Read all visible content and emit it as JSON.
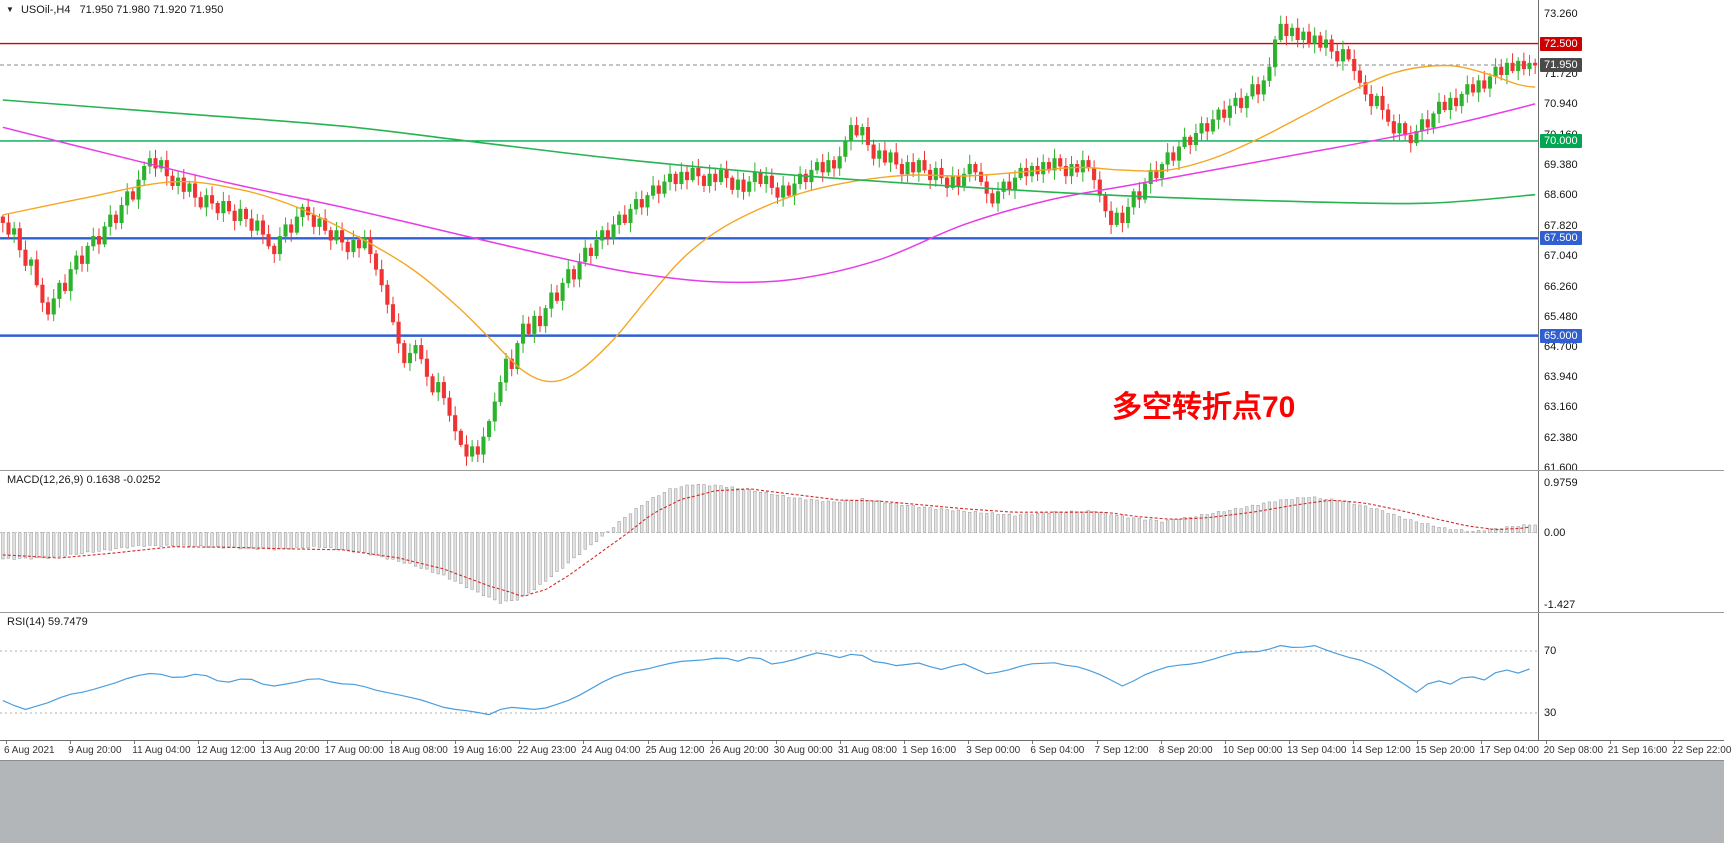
{
  "header": {
    "symbol": "USOil-,H4",
    "ohlc": "71.950 71.980 71.920 71.950"
  },
  "annotation": {
    "text": "多空转折点70",
    "color": "#ff0000"
  },
  "price_axis": {
    "ticks": [
      "73.260",
      "71.720",
      "70.940",
      "70.160",
      "69.380",
      "68.600",
      "67.820",
      "67.040",
      "66.260",
      "65.480",
      "64.700",
      "63.940",
      "63.160",
      "62.380",
      "61.600"
    ],
    "badges": [
      {
        "label": "72.500",
        "value": 72.5,
        "color": "#cc0000"
      },
      {
        "label": "71.950",
        "value": 71.95,
        "color": "#4a4a4a"
      },
      {
        "label": "70.000",
        "value": 70.0,
        "color": "#00a651"
      },
      {
        "label": "67.500",
        "value": 67.5,
        "color": "#2f5fd0"
      },
      {
        "label": "65.000",
        "value": 65.0,
        "color": "#2f5fd0"
      }
    ]
  },
  "indicators": {
    "macd": {
      "label": "MACD(12,26,9) 0.1638 -0.0252",
      "axis_ticks": [
        "0.9759",
        "0.00",
        "-1.427"
      ]
    },
    "rsi": {
      "label": "RSI(14) 59.7479",
      "axis_ticks": [
        "70",
        "30"
      ]
    }
  },
  "time_axis": {
    "labels": [
      "6 Aug 2021",
      "9 Aug 20:00",
      "11 Aug 04:00",
      "12 Aug 12:00",
      "13 Aug 20:00",
      "17 Aug 00:00",
      "18 Aug 08:00",
      "19 Aug 16:00",
      "22 Aug 23:00",
      "24 Aug 04:00",
      "25 Aug 12:00",
      "26 Aug 20:00",
      "30 Aug 00:00",
      "31 Aug 08:00",
      "1 Sep 16:00",
      "3 Sep 00:00",
      "6 Sep 04:00",
      "7 Sep 12:00",
      "8 Sep 20:00",
      "10 Sep 00:00",
      "13 Sep 04:00",
      "14 Sep 12:00",
      "15 Sep 20:00",
      "17 Sep 04:00",
      "20 Sep 08:00",
      "21 Sep 16:00",
      "22 Sep 22:00"
    ]
  },
  "chart_data": [
    {
      "id": "price",
      "type": "candlestick",
      "title": "USOil- H4",
      "ylim": [
        61.6,
        73.26
      ],
      "up_color": "#2db22d",
      "down_color": "#ef3333",
      "current_price": 71.95,
      "first_open": 68.05,
      "closes": [
        67.9,
        67.6,
        67.75,
        67.2,
        66.8,
        66.95,
        66.3,
        65.85,
        65.55,
        65.95,
        66.35,
        66.15,
        66.7,
        67.05,
        66.85,
        67.3,
        67.55,
        67.35,
        67.8,
        68.1,
        67.9,
        68.35,
        68.7,
        68.5,
        69.0,
        69.35,
        69.55,
        69.3,
        69.5,
        69.1,
        68.85,
        69.05,
        68.7,
        68.9,
        68.55,
        68.3,
        68.6,
        68.4,
        68.15,
        68.45,
        68.2,
        67.95,
        68.25,
        68.0,
        67.7,
        67.95,
        67.6,
        67.3,
        67.1,
        67.55,
        67.85,
        67.65,
        68.05,
        68.3,
        68.1,
        67.8,
        68.0,
        67.7,
        67.45,
        67.7,
        67.4,
        67.15,
        67.45,
        67.25,
        67.5,
        67.1,
        66.7,
        66.3,
        65.8,
        65.35,
        64.8,
        64.3,
        64.55,
        64.75,
        64.4,
        63.95,
        63.55,
        63.8,
        63.4,
        62.95,
        62.55,
        62.2,
        61.9,
        62.15,
        61.95,
        62.4,
        62.8,
        63.3,
        63.8,
        64.4,
        64.15,
        64.8,
        65.3,
        65.05,
        65.5,
        65.25,
        65.7,
        66.1,
        65.9,
        66.35,
        66.7,
        66.45,
        66.9,
        67.25,
        67.05,
        67.45,
        67.7,
        67.5,
        67.85,
        68.1,
        67.9,
        68.25,
        68.5,
        68.3,
        68.6,
        68.85,
        68.65,
        68.95,
        69.15,
        68.9,
        69.2,
        69.0,
        69.3,
        69.1,
        68.85,
        69.15,
        68.95,
        69.25,
        69.05,
        68.75,
        69.0,
        68.7,
        68.95,
        69.2,
        68.9,
        69.1,
        68.8,
        68.55,
        68.85,
        68.6,
        68.9,
        69.15,
        68.95,
        69.25,
        69.45,
        69.2,
        69.5,
        69.3,
        69.6,
        70.0,
        70.4,
        70.15,
        70.35,
        69.9,
        69.55,
        69.75,
        69.45,
        69.7,
        69.4,
        69.15,
        69.45,
        69.2,
        69.5,
        69.25,
        69.0,
        69.3,
        69.05,
        68.8,
        69.1,
        68.85,
        69.15,
        69.4,
        69.2,
        68.95,
        68.65,
        68.4,
        68.7,
        68.95,
        68.75,
        69.05,
        69.3,
        69.1,
        69.35,
        69.15,
        69.45,
        69.25,
        69.55,
        69.35,
        69.1,
        69.4,
        69.2,
        69.5,
        69.3,
        69.0,
        68.6,
        68.2,
        67.85,
        68.15,
        67.9,
        68.3,
        68.7,
        68.5,
        68.9,
        69.25,
        69.05,
        69.4,
        69.7,
        69.5,
        69.85,
        70.1,
        69.9,
        70.2,
        70.45,
        70.25,
        70.55,
        70.8,
        70.6,
        70.9,
        71.1,
        70.85,
        71.15,
        71.45,
        71.2,
        71.55,
        71.9,
        72.6,
        73.0,
        72.7,
        72.9,
        72.6,
        72.8,
        72.5,
        72.7,
        72.4,
        72.6,
        72.3,
        72.05,
        72.35,
        72.1,
        71.8,
        71.5,
        71.2,
        70.9,
        71.15,
        70.8,
        70.5,
        70.2,
        70.45,
        70.15,
        69.95,
        70.25,
        70.55,
        70.35,
        70.7,
        71.0,
        70.8,
        71.1,
        70.9,
        71.2,
        71.45,
        71.25,
        71.55,
        71.35,
        71.65,
        71.9,
        71.7,
        72.0,
        71.8,
        72.05,
        71.85,
        72.0,
        71.95
      ],
      "horizontal_lines": [
        {
          "value": 72.5,
          "color": "#d40000",
          "width": 1.4
        },
        {
          "value": 70.0,
          "color": "#00a651",
          "width": 1.4
        },
        {
          "value": 67.5,
          "color": "#2f5fd0",
          "width": 2.4
        },
        {
          "value": 65.0,
          "color": "#2f5fd0",
          "width": 2.4
        }
      ],
      "moving_averages": [
        {
          "name": "ma-orange",
          "color": "#f5a623",
          "width": 1.4,
          "points": [
            [
              0,
              68.1
            ],
            [
              15,
              68.55
            ],
            [
              30,
              68.95
            ],
            [
              42,
              68.75
            ],
            [
              52,
              68.3
            ],
            [
              62,
              67.6
            ],
            [
              72,
              66.75
            ],
            [
              80,
              65.8
            ],
            [
              86,
              64.95
            ],
            [
              92,
              64.1
            ],
            [
              97,
              63.82
            ],
            [
              102,
              64.1
            ],
            [
              108,
              64.9
            ],
            [
              114,
              65.95
            ],
            [
              120,
              66.95
            ],
            [
              126,
              67.65
            ],
            [
              133,
              68.2
            ],
            [
              141,
              68.65
            ],
            [
              150,
              68.95
            ],
            [
              160,
              69.12
            ],
            [
              170,
              69.1
            ],
            [
              180,
              69.2
            ],
            [
              190,
              69.32
            ],
            [
              198,
              69.25
            ],
            [
              206,
              69.25
            ],
            [
              214,
              69.55
            ],
            [
              222,
              70.05
            ],
            [
              230,
              70.65
            ],
            [
              238,
              71.25
            ],
            [
              245,
              71.7
            ],
            [
              251,
              71.9
            ],
            [
              257,
              71.92
            ],
            [
              263,
              71.7
            ],
            [
              268,
              71.45
            ],
            [
              271,
              71.38
            ]
          ]
        },
        {
          "name": "ma-magenta",
          "color": "#e83ce8",
          "width": 1.5,
          "points": [
            [
              0,
              70.35
            ],
            [
              20,
              69.62
            ],
            [
              40,
              68.92
            ],
            [
              60,
              68.3
            ],
            [
              80,
              67.62
            ],
            [
              100,
              66.95
            ],
            [
              112,
              66.6
            ],
            [
              126,
              66.38
            ],
            [
              140,
              66.45
            ],
            [
              155,
              66.95
            ],
            [
              170,
              67.85
            ],
            [
              185,
              68.48
            ],
            [
              200,
              68.88
            ],
            [
              215,
              69.28
            ],
            [
              230,
              69.68
            ],
            [
              245,
              70.08
            ],
            [
              258,
              70.48
            ],
            [
              271,
              70.95
            ]
          ]
        },
        {
          "name": "ma-green",
          "color": "#27b351",
          "width": 1.6,
          "points": [
            [
              0,
              71.05
            ],
            [
              30,
              70.72
            ],
            [
              60,
              70.38
            ],
            [
              82,
              70.0
            ],
            [
              110,
              69.52
            ],
            [
              140,
              69.12
            ],
            [
              170,
              68.82
            ],
            [
              200,
              68.58
            ],
            [
              230,
              68.44
            ],
            [
              252,
              68.4
            ],
            [
              271,
              68.62
            ]
          ]
        }
      ]
    },
    {
      "id": "macd",
      "type": "bar",
      "title": "MACD(12,26,9)",
      "current_values": [
        0.1638,
        -0.0252
      ],
      "ylim": [
        -1.427,
        0.9759
      ],
      "histogram_color": "#e3e3e3",
      "histogram_border": "#a0a0a0",
      "signal_color": "#d42a2a",
      "macd_waypoints": [
        [
          0,
          -0.52
        ],
        [
          8,
          -0.5
        ],
        [
          16,
          -0.38
        ],
        [
          24,
          -0.26
        ],
        [
          32,
          -0.26
        ],
        [
          40,
          -0.3
        ],
        [
          48,
          -0.33
        ],
        [
          56,
          -0.28
        ],
        [
          64,
          -0.4
        ],
        [
          72,
          -0.62
        ],
        [
          78,
          -0.85
        ],
        [
          84,
          -1.18
        ],
        [
          88,
          -1.38
        ],
        [
          91,
          -1.32
        ],
        [
          94,
          -1.12
        ],
        [
          98,
          -0.78
        ],
        [
          102,
          -0.42
        ],
        [
          106,
          -0.08
        ],
        [
          110,
          0.3
        ],
        [
          114,
          0.62
        ],
        [
          118,
          0.85
        ],
        [
          122,
          0.95
        ],
        [
          127,
          0.92
        ],
        [
          133,
          0.82
        ],
        [
          140,
          0.68
        ],
        [
          147,
          0.6
        ],
        [
          152,
          0.66
        ],
        [
          158,
          0.56
        ],
        [
          165,
          0.47
        ],
        [
          172,
          0.4
        ],
        [
          179,
          0.34
        ],
        [
          186,
          0.4
        ],
        [
          193,
          0.42
        ],
        [
          199,
          0.3
        ],
        [
          205,
          0.22
        ],
        [
          211,
          0.32
        ],
        [
          218,
          0.46
        ],
        [
          225,
          0.62
        ],
        [
          231,
          0.7
        ],
        [
          237,
          0.62
        ],
        [
          243,
          0.46
        ],
        [
          249,
          0.24
        ],
        [
          255,
          0.08
        ],
        [
          260,
          0.02
        ],
        [
          265,
          0.09
        ],
        [
          268,
          0.13
        ],
        [
          271,
          0.16
        ]
      ],
      "signal_waypoints": [
        [
          0,
          -0.44
        ],
        [
          10,
          -0.5
        ],
        [
          20,
          -0.4
        ],
        [
          30,
          -0.28
        ],
        [
          40,
          -0.29
        ],
        [
          50,
          -0.32
        ],
        [
          60,
          -0.34
        ],
        [
          70,
          -0.5
        ],
        [
          78,
          -0.72
        ],
        [
          86,
          -1.05
        ],
        [
          92,
          -1.25
        ],
        [
          96,
          -1.12
        ],
        [
          100,
          -0.85
        ],
        [
          105,
          -0.45
        ],
        [
          110,
          -0.05
        ],
        [
          115,
          0.38
        ],
        [
          120,
          0.65
        ],
        [
          126,
          0.82
        ],
        [
          132,
          0.86
        ],
        [
          140,
          0.75
        ],
        [
          148,
          0.64
        ],
        [
          155,
          0.62
        ],
        [
          163,
          0.54
        ],
        [
          171,
          0.46
        ],
        [
          179,
          0.4
        ],
        [
          187,
          0.4
        ],
        [
          195,
          0.4
        ],
        [
          201,
          0.31
        ],
        [
          207,
          0.26
        ],
        [
          213,
          0.29
        ],
        [
          221,
          0.4
        ],
        [
          229,
          0.55
        ],
        [
          235,
          0.64
        ],
        [
          241,
          0.58
        ],
        [
          247,
          0.44
        ],
        [
          253,
          0.28
        ],
        [
          259,
          0.13
        ],
        [
          264,
          0.06
        ],
        [
          268,
          0.08
        ],
        [
          271,
          0.12
        ]
      ]
    },
    {
      "id": "rsi",
      "type": "line",
      "title": "RSI(14)",
      "last_value": 59.7479,
      "levels": [
        70,
        30
      ],
      "line_color": "#4a9ede",
      "waypoints": [
        [
          0,
          38
        ],
        [
          4,
          33
        ],
        [
          8,
          36
        ],
        [
          12,
          42
        ],
        [
          16,
          46
        ],
        [
          20,
          49
        ],
        [
          24,
          54
        ],
        [
          27,
          57
        ],
        [
          31,
          52
        ],
        [
          35,
          55
        ],
        [
          39,
          50
        ],
        [
          43,
          53
        ],
        [
          47,
          46
        ],
        [
          51,
          50
        ],
        [
          55,
          53
        ],
        [
          59,
          48
        ],
        [
          63,
          49
        ],
        [
          67,
          44
        ],
        [
          71,
          40
        ],
        [
          75,
          38
        ],
        [
          79,
          33
        ],
        [
          83,
          30
        ],
        [
          86,
          29
        ],
        [
          89,
          35
        ],
        [
          92,
          33
        ],
        [
          95,
          31
        ],
        [
          99,
          37
        ],
        [
          103,
          44
        ],
        [
          107,
          51
        ],
        [
          111,
          57
        ],
        [
          115,
          60
        ],
        [
          119,
          62
        ],
        [
          123,
          64
        ],
        [
          127,
          67
        ],
        [
          130,
          63
        ],
        [
          133,
          66
        ],
        [
          136,
          62
        ],
        [
          140,
          65
        ],
        [
          144,
          68
        ],
        [
          148,
          66
        ],
        [
          151,
          70
        ],
        [
          154,
          63
        ],
        [
          158,
          60
        ],
        [
          162,
          63
        ],
        [
          166,
          58
        ],
        [
          170,
          61
        ],
        [
          174,
          56
        ],
        [
          178,
          58
        ],
        [
          182,
          61
        ],
        [
          186,
          63
        ],
        [
          190,
          60
        ],
        [
          194,
          54
        ],
        [
          198,
          48
        ],
        [
          202,
          55
        ],
        [
          206,
          59
        ],
        [
          210,
          62
        ],
        [
          214,
          65
        ],
        [
          218,
          68
        ],
        [
          222,
          70
        ],
        [
          226,
          74
        ],
        [
          229,
          71
        ],
        [
          232,
          73
        ],
        [
          236,
          69
        ],
        [
          240,
          64
        ],
        [
          244,
          57
        ],
        [
          248,
          49
        ],
        [
          250,
          44
        ],
        [
          253,
          51
        ],
        [
          256,
          48
        ],
        [
          259,
          55
        ],
        [
          262,
          52
        ],
        [
          265,
          58
        ],
        [
          268,
          55
        ],
        [
          271,
          60
        ]
      ]
    }
  ]
}
